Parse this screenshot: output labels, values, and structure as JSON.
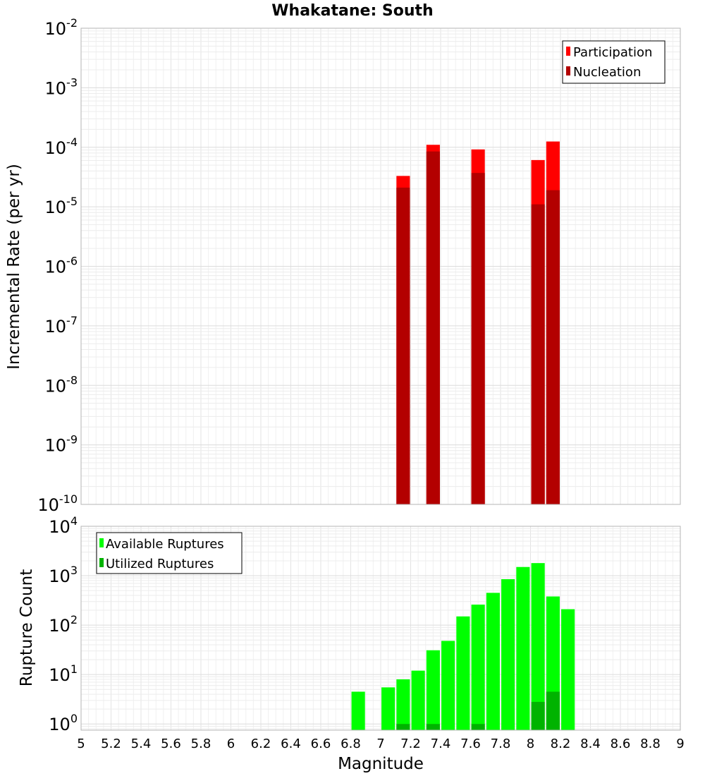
{
  "chart_data": [
    {
      "type": "bar",
      "title": "Whakatane: South",
      "xlabel": "",
      "ylabel": "Incremental Rate (per yr)",
      "yscale": "log",
      "ylim": [
        1e-10,
        0.01
      ],
      "xlim": [
        5,
        9
      ],
      "y_ticks": [
        {
          "base": "10",
          "exp": "-2"
        },
        {
          "base": "10",
          "exp": "-3"
        },
        {
          "base": "10",
          "exp": "-4"
        },
        {
          "base": "10",
          "exp": "-5"
        },
        {
          "base": "10",
          "exp": "-6"
        },
        {
          "base": "10",
          "exp": "-7"
        },
        {
          "base": "10",
          "exp": "-8"
        },
        {
          "base": "10",
          "exp": "-9"
        },
        {
          "base": "10",
          "exp": "-10"
        }
      ],
      "legend": {
        "position": "top-right",
        "entries": [
          {
            "label": "Participation",
            "color": "#ff0000"
          },
          {
            "label": "Nucleation",
            "color": "#b30000"
          }
        ]
      },
      "series": [
        {
          "name": "Participation",
          "color": "#ff0000",
          "x": [
            7.15,
            7.35,
            7.65,
            8.05,
            8.15
          ],
          "values": [
            3.3e-05,
            0.00011,
            9.2e-05,
            6.1e-05,
            0.000125
          ]
        },
        {
          "name": "Nucleation",
          "color": "#b30000",
          "x": [
            7.15,
            7.35,
            7.65,
            8.05,
            8.15
          ],
          "values": [
            2.1e-05,
            8.5e-05,
            3.7e-05,
            1.1e-05,
            1.9e-05
          ]
        }
      ]
    },
    {
      "type": "bar",
      "title": "",
      "xlabel": "Magnitude",
      "ylabel": "Rupture Count",
      "yscale": "log",
      "ylim": [
        0.75,
        10000
      ],
      "xlim": [
        5,
        9
      ],
      "y_ticks": [
        {
          "base": "10",
          "exp": "4"
        },
        {
          "base": "10",
          "exp": "3"
        },
        {
          "base": "10",
          "exp": "2"
        },
        {
          "base": "10",
          "exp": "1"
        },
        {
          "base": "10",
          "exp": "0"
        }
      ],
      "x_tick_labels": [
        "5",
        "5.2",
        "5.4",
        "5.6",
        "5.8",
        "6",
        "6.2",
        "6.4",
        "6.6",
        "6.8",
        "7",
        "7.2",
        "7.4",
        "7.6",
        "7.8",
        "8",
        "8.2",
        "8.4",
        "8.6",
        "8.8",
        "9"
      ],
      "legend": {
        "position": "top-left",
        "entries": [
          {
            "label": "Available Ruptures",
            "color": "#00ff00"
          },
          {
            "label": "Utilized Ruptures",
            "color": "#00b300"
          }
        ]
      },
      "series": [
        {
          "name": "Available Ruptures",
          "color": "#00ff00",
          "x": [
            6.85,
            7.05,
            7.15,
            7.25,
            7.35,
            7.45,
            7.55,
            7.65,
            7.75,
            7.85,
            7.95,
            8.05,
            8.15,
            8.25
          ],
          "values": [
            4.5,
            5.5,
            8,
            12,
            31,
            48,
            150,
            260,
            450,
            850,
            1500,
            1800,
            380,
            210
          ]
        },
        {
          "name": "Utilized Ruptures",
          "color": "#00b300",
          "x": [
            7.15,
            7.35,
            7.65,
            8.05,
            8.15
          ],
          "values": [
            1,
            1,
            1,
            2.8,
            4.5
          ]
        }
      ]
    }
  ]
}
